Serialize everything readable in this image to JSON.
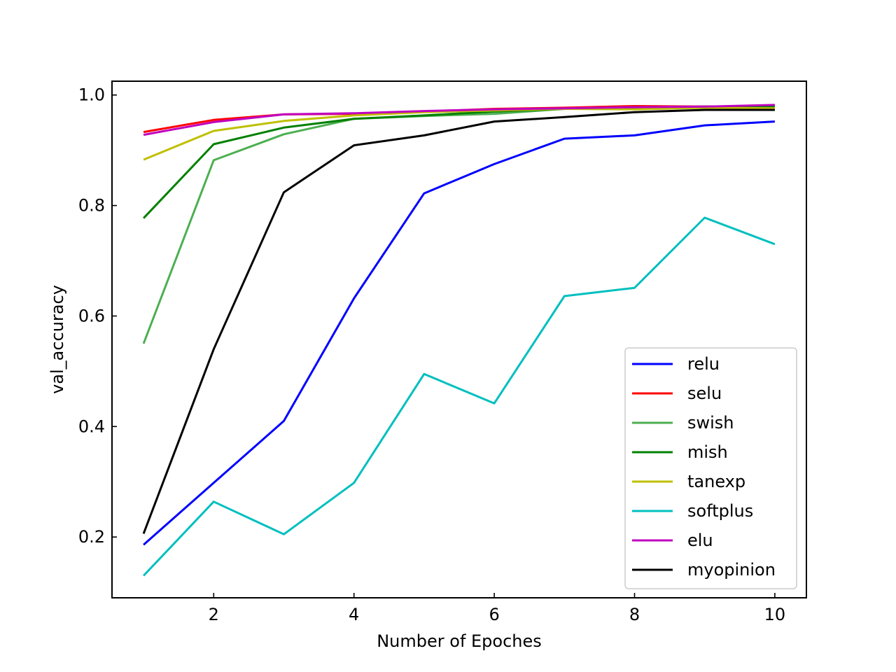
{
  "chart_data": {
    "type": "line",
    "title": "",
    "xlabel": "Number of Epoches",
    "ylabel": "val_accuracy",
    "xlim": [
      0.55,
      10.45
    ],
    "ylim": [
      0.09,
      1.025
    ],
    "xticks": [
      2,
      4,
      6,
      8,
      10
    ],
    "yticks": [
      0.2,
      0.4,
      0.6,
      0.8,
      1.0
    ],
    "xtick_labels": [
      "2",
      "4",
      "6",
      "8",
      "10"
    ],
    "ytick_labels": [
      "0.2",
      "0.4",
      "0.6",
      "0.8",
      "1.0"
    ],
    "grid": false,
    "legend_position": "lower-right",
    "x": [
      1,
      2,
      3,
      4,
      5,
      6,
      7,
      8,
      9,
      10
    ],
    "series": [
      {
        "name": "relu",
        "color": "#0000ff",
        "values": [
          0.186,
          0.298,
          0.41,
          0.632,
          0.822,
          0.875,
          0.921,
          0.927,
          0.945,
          0.952
        ]
      },
      {
        "name": "selu",
        "color": "#ff0000",
        "values": [
          0.933,
          0.955,
          0.965,
          0.966,
          0.97,
          0.975,
          0.977,
          0.98,
          0.979,
          0.98
        ]
      },
      {
        "name": "swish",
        "color": "#4caf50",
        "values": [
          0.55,
          0.882,
          0.929,
          0.957,
          0.962,
          0.966,
          0.975,
          0.978,
          0.978,
          0.98
        ]
      },
      {
        "name": "mish",
        "color": "#008000",
        "values": [
          0.777,
          0.911,
          0.941,
          0.957,
          0.963,
          0.97,
          0.975,
          0.977,
          0.979,
          0.979
        ]
      },
      {
        "name": "tanexp",
        "color": "#bfbf00",
        "values": [
          0.883,
          0.935,
          0.953,
          0.963,
          0.969,
          0.972,
          0.975,
          0.974,
          0.977,
          0.976
        ]
      },
      {
        "name": "softplus",
        "color": "#00bfbf",
        "values": [
          0.13,
          0.264,
          0.205,
          0.298,
          0.495,
          0.442,
          0.636,
          0.651,
          0.778,
          0.73
        ]
      },
      {
        "name": "elu",
        "color": "#bf00bf",
        "values": [
          0.928,
          0.951,
          0.965,
          0.967,
          0.971,
          0.974,
          0.976,
          0.978,
          0.979,
          0.982
        ]
      },
      {
        "name": "myopinion",
        "color": "#000000",
        "values": [
          0.206,
          0.54,
          0.824,
          0.909,
          0.927,
          0.952,
          0.96,
          0.969,
          0.973,
          0.973
        ]
      }
    ]
  }
}
